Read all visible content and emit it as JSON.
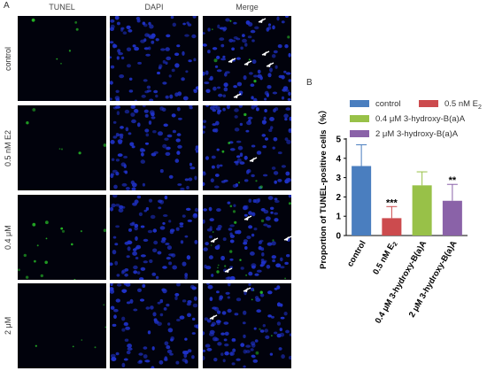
{
  "panel_a_label": "A",
  "panel_b_label": "B",
  "columns": [
    "TUNEL",
    "DAPI",
    "Merge"
  ],
  "rows": [
    "control",
    "0.5 nM E2",
    "0.4 μM",
    "2 μM"
  ],
  "colors": {
    "background": "#01020c",
    "nuclei": "#1f32c8",
    "tunel": "#2ad12a",
    "arrow": "#ffffff"
  },
  "chart_data": {
    "type": "bar",
    "categories": [
      "control",
      "0.5 nM E2",
      "0.4 μM 3-hydroxy-B(a)A",
      "2 μM 3-hydroxy-B(a)A"
    ],
    "category_labels": [
      "control",
      "0.5 nM E",
      "0.4 μM 3-hydroxy-B(a)A",
      "2 μM 3-hydroxy-B(a)A"
    ],
    "category_subscripts": [
      "",
      "2",
      "",
      ""
    ],
    "values": [
      3.6,
      0.9,
      2.6,
      1.8
    ],
    "errors": [
      1.1,
      0.6,
      0.7,
      0.85
    ],
    "significance": [
      "",
      "***",
      "",
      "**"
    ],
    "colors": [
      "#4a7ebf",
      "#cc4b4e",
      "#98c148",
      "#8a62a8"
    ],
    "ylabel": "Proportion of TUNEL-positive cells（%）",
    "ylim": [
      0,
      5
    ],
    "yticks": [
      0,
      1,
      2,
      3,
      4,
      5
    ],
    "legend": {
      "position": "top",
      "entries": [
        "control",
        "0.5 nM E",
        "0.4 μM 3-hydroxy-B(a)A",
        "2 μM 3-hydroxy-B(a)A"
      ],
      "subscripts": [
        "",
        "2",
        "",
        ""
      ]
    },
    "grid": false
  }
}
